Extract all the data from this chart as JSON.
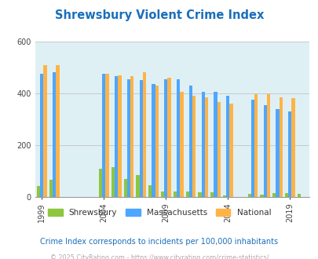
{
  "title": "Shrewsbury Violent Crime Index",
  "title_color": "#1a6fbb",
  "chart_years": [
    1999,
    2000,
    2001,
    2002,
    2003,
    2004,
    2005,
    2006,
    2007,
    2008,
    2009,
    2010,
    2011,
    2012,
    2013,
    2014,
    2015,
    2016,
    2017,
    2018,
    2019,
    2020
  ],
  "shrewsbury": [
    42,
    65,
    0,
    0,
    0,
    110,
    115,
    70,
    85,
    45,
    22,
    22,
    22,
    18,
    18,
    5,
    0,
    12,
    8,
    15,
    15,
    12
  ],
  "massachusetts": [
    475,
    480,
    0,
    0,
    0,
    475,
    465,
    455,
    450,
    435,
    455,
    455,
    430,
    405,
    405,
    390,
    0,
    375,
    355,
    340,
    330,
    0
  ],
  "national": [
    510,
    510,
    0,
    0,
    0,
    475,
    470,
    465,
    480,
    430,
    460,
    405,
    390,
    385,
    365,
    360,
    0,
    395,
    395,
    385,
    380,
    0
  ],
  "x_tick_years": [
    1999,
    2004,
    2009,
    2014,
    2019
  ],
  "ylim": [
    0,
    600
  ],
  "yticks": [
    0,
    200,
    400,
    600
  ],
  "color_shrewsbury": "#8dc63f",
  "color_massachusetts": "#4da6ff",
  "color_national": "#ffb347",
  "bg_color": "#dff0f5",
  "subtitle": "Crime Index corresponds to incidents per 100,000 inhabitants",
  "footer": "© 2025 CityRating.com - https://www.cityrating.com/crime-statistics/",
  "subtitle_color": "#1a6fbb",
  "footer_color": "#aaaaaa"
}
